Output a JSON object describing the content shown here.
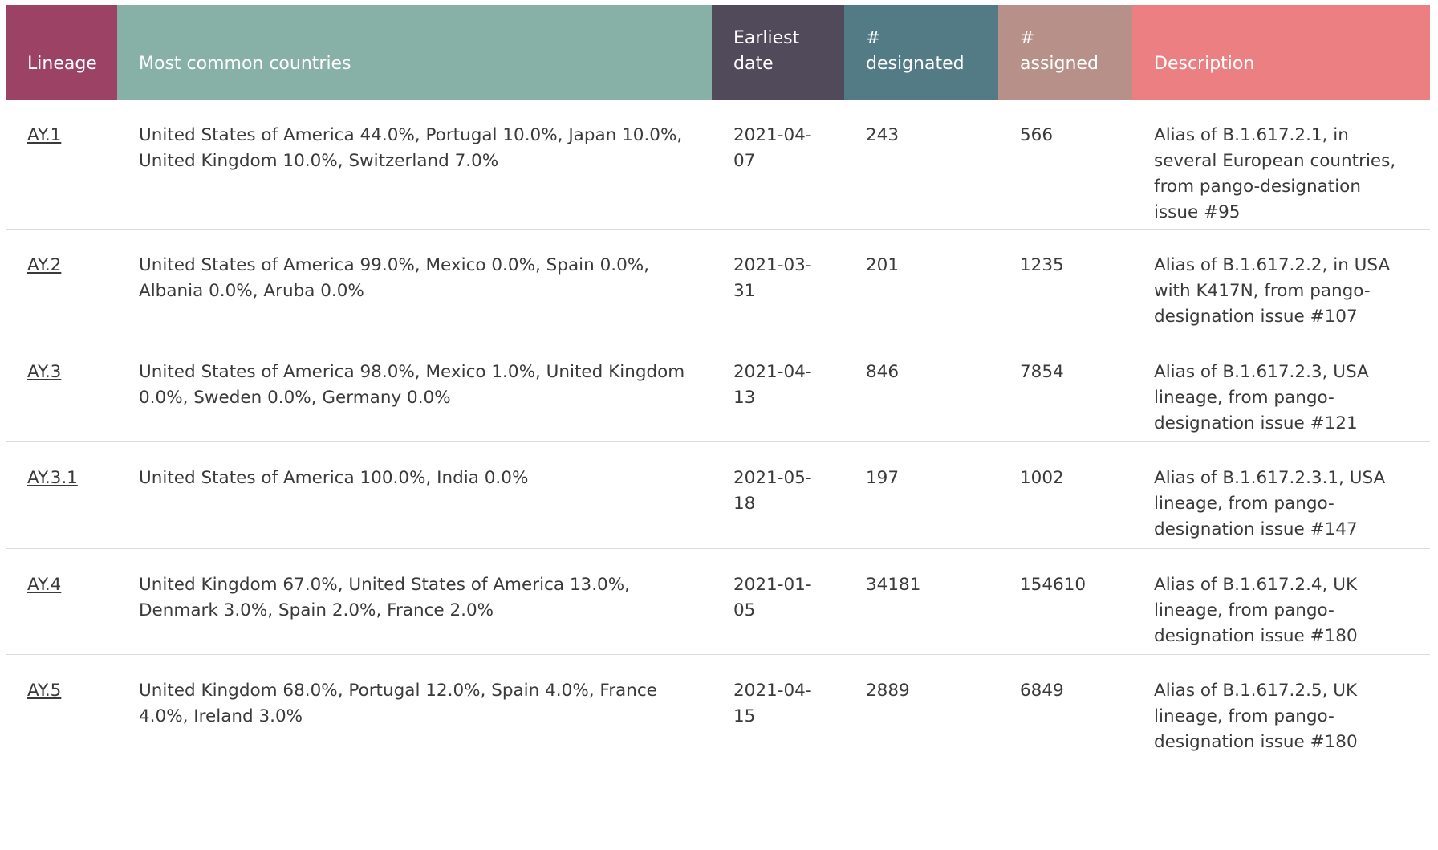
{
  "columns": [
    {
      "key": "lineage",
      "label": "Lineage",
      "color": "#9c4265"
    },
    {
      "key": "countries",
      "label": "Most common countries",
      "color": "#87b0a6"
    },
    {
      "key": "date",
      "label": "Earliest\ndate",
      "color": "#514a5b"
    },
    {
      "key": "designated",
      "label": "#\ndesignated",
      "color": "#527b85"
    },
    {
      "key": "assigned",
      "label": "#\nassigned",
      "color": "#b8908a"
    },
    {
      "key": "description",
      "label": "Description",
      "color": "#ec7f81"
    }
  ],
  "rows": [
    {
      "lineage": "AY.1",
      "countries": "United States of America 44.0%, Portugal 10.0%, Japan 10.0%, United Kingdom 10.0%, Switzerland 7.0%",
      "date": "2021-04-07",
      "designated": "243",
      "assigned": "566",
      "description": "Alias of B.1.617.2.1, in several European countries, from pango-designation issue #95"
    },
    {
      "lineage": "AY.2",
      "countries": "United States of America 99.0%, Mexico 0.0%, Spain 0.0%, Albania 0.0%, Aruba 0.0%",
      "date": "2021-03-31",
      "designated": "201",
      "assigned": "1235",
      "description": "Alias of B.1.617.2.2, in USA with K417N, from pango-designation issue #107"
    },
    {
      "lineage": "AY.3",
      "countries": "United States of America 98.0%, Mexico 1.0%, United Kingdom 0.0%, Sweden 0.0%, Germany 0.0%",
      "date": "2021-04-13",
      "designated": "846",
      "assigned": "7854",
      "description": "Alias of B.1.617.2.3, USA lineage, from pango-designation issue #121"
    },
    {
      "lineage": "AY.3.1",
      "countries": "United States of America 100.0%, India 0.0%",
      "date": "2021-05-18",
      "designated": "197",
      "assigned": "1002",
      "description": "Alias of B.1.617.2.3.1, USA lineage, from pango-designation issue #147"
    },
    {
      "lineage": "AY.4",
      "countries": "United Kingdom 67.0%, United States of America 13.0%, Denmark 3.0%, Spain 2.0%, France 2.0%",
      "date": "2021-01-05",
      "designated": "34181",
      "assigned": "154610",
      "description": "Alias of B.1.617.2.4, UK lineage, from pango-designation issue #180"
    },
    {
      "lineage": "AY.5",
      "countries": "United Kingdom 68.0%, Portugal 12.0%, Spain 4.0%, France 4.0%, Ireland 3.0%",
      "date": "2021-04-15",
      "designated": "2889",
      "assigned": "6849",
      "description": "Alias of B.1.617.2.5, UK lineage, from pango-designation issue #180"
    }
  ]
}
